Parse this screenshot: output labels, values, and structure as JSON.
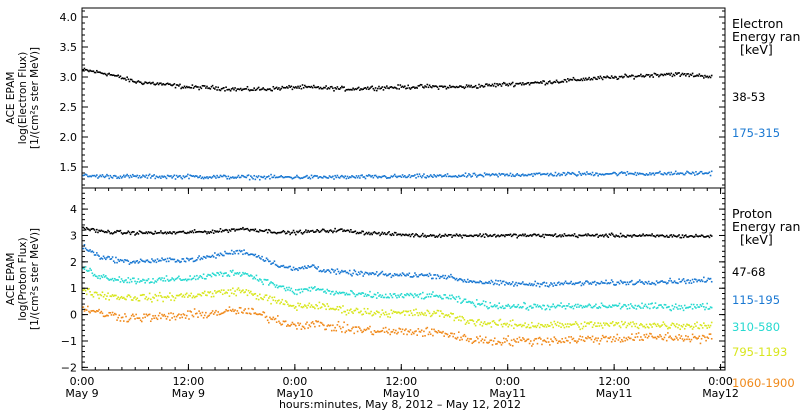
{
  "chart_data": [
    {
      "type": "scatter",
      "panel": "electron",
      "ylabel_lines": [
        "ACE EPAM",
        "log(Electron Flux)",
        "[1/(cm²s ster MeV)]"
      ],
      "ylim": [
        1.15,
        4.15
      ],
      "yticks": [
        1.5,
        2.0,
        2.5,
        3.0,
        3.5,
        4.0
      ],
      "ytick_labels": [
        "1.5",
        "2.0",
        "2.5",
        "3.0",
        "3.5",
        "4.0"
      ],
      "legend_title": [
        "Electron",
        "Energy ran",
        "[keV]"
      ],
      "series": [
        {
          "name": "38-53",
          "color": "#000000",
          "points": [
            [
              0,
              3.12
            ],
            [
              6,
              3.05
            ],
            [
              12,
              2.92
            ],
            [
              18,
              2.88
            ],
            [
              24,
              2.83
            ],
            [
              30,
              2.82
            ],
            [
              36,
              2.79
            ],
            [
              42,
              2.8
            ],
            [
              48,
              2.83
            ],
            [
              54,
              2.82
            ],
            [
              60,
              2.8
            ],
            [
              66,
              2.82
            ],
            [
              72,
              2.83
            ],
            [
              78,
              2.84
            ],
            [
              84,
              2.83
            ],
            [
              90,
              2.85
            ],
            [
              96,
              2.88
            ],
            [
              102,
              2.9
            ],
            [
              108,
              2.93
            ],
            [
              114,
              2.97
            ],
            [
              120,
              2.99
            ],
            [
              126,
              3.02
            ],
            [
              132,
              3.05
            ],
            [
              138,
              3.03
            ],
            [
              142,
              3.01
            ]
          ]
        },
        {
          "name": "175-315",
          "color": "#1a78d2",
          "points": [
            [
              0,
              1.35
            ],
            [
              12,
              1.34
            ],
            [
              24,
              1.34
            ],
            [
              36,
              1.33
            ],
            [
              48,
              1.33
            ],
            [
              60,
              1.33
            ],
            [
              72,
              1.34
            ],
            [
              84,
              1.35
            ],
            [
              96,
              1.37
            ],
            [
              108,
              1.38
            ],
            [
              120,
              1.39
            ],
            [
              132,
              1.39
            ],
            [
              142,
              1.4
            ]
          ]
        }
      ]
    },
    {
      "type": "scatter",
      "panel": "proton",
      "ylabel_lines": [
        "ACE EPAM",
        "log(Proton Flux)",
        "[1/(cm²s ster MeV)]"
      ],
      "ylim": [
        -2.1,
        4.8
      ],
      "yticks": [
        -2,
        -1,
        0,
        1,
        2,
        3,
        4
      ],
      "ytick_labels": [
        "−2",
        "−1",
        "0",
        "1",
        "2",
        "3",
        "4"
      ],
      "legend_title": [
        "Proton",
        "Energy ran",
        "[keV]"
      ],
      "series": [
        {
          "name": "47-68",
          "color": "#000000",
          "points": [
            [
              0,
              3.3
            ],
            [
              4,
              3.15
            ],
            [
              10,
              3.1
            ],
            [
              20,
              3.1
            ],
            [
              30,
              3.15
            ],
            [
              36,
              3.25
            ],
            [
              40,
              3.2
            ],
            [
              46,
              3.1
            ],
            [
              52,
              3.15
            ],
            [
              58,
              3.2
            ],
            [
              64,
              3.1
            ],
            [
              70,
              3.05
            ],
            [
              76,
              3.0
            ],
            [
              82,
              3.0
            ],
            [
              90,
              3.0
            ],
            [
              100,
              3.0
            ],
            [
              110,
              3.0
            ],
            [
              120,
              3.0
            ],
            [
              130,
              2.98
            ],
            [
              142,
              2.97
            ]
          ]
        },
        {
          "name": "115-195",
          "color": "#1a78d2",
          "points": [
            [
              0,
              2.6
            ],
            [
              4,
              2.2
            ],
            [
              10,
              2.0
            ],
            [
              18,
              2.05
            ],
            [
              26,
              2.1
            ],
            [
              32,
              2.3
            ],
            [
              36,
              2.4
            ],
            [
              40,
              2.2
            ],
            [
              44,
              1.9
            ],
            [
              48,
              1.7
            ],
            [
              52,
              1.85
            ],
            [
              54,
              1.7
            ],
            [
              58,
              1.6
            ],
            [
              64,
              1.55
            ],
            [
              70,
              1.5
            ],
            [
              76,
              1.5
            ],
            [
              82,
              1.45
            ],
            [
              86,
              1.3
            ],
            [
              92,
              1.2
            ],
            [
              100,
              1.15
            ],
            [
              110,
              1.18
            ],
            [
              120,
              1.2
            ],
            [
              130,
              1.25
            ],
            [
              142,
              1.3
            ]
          ]
        },
        {
          "name": "310-580",
          "color": "#27d9d0",
          "points": [
            [
              0,
              1.8
            ],
            [
              4,
              1.45
            ],
            [
              10,
              1.3
            ],
            [
              18,
              1.3
            ],
            [
              26,
              1.4
            ],
            [
              32,
              1.55
            ],
            [
              36,
              1.6
            ],
            [
              40,
              1.35
            ],
            [
              44,
              1.1
            ],
            [
              48,
              0.85
            ],
            [
              52,
              1.0
            ],
            [
              56,
              0.85
            ],
            [
              62,
              0.75
            ],
            [
              68,
              0.7
            ],
            [
              76,
              0.72
            ],
            [
              82,
              0.68
            ],
            [
              86,
              0.5
            ],
            [
              92,
              0.35
            ],
            [
              100,
              0.3
            ],
            [
              110,
              0.3
            ],
            [
              120,
              0.32
            ],
            [
              130,
              0.3
            ],
            [
              142,
              0.3
            ]
          ]
        },
        {
          "name": "795-1193",
          "color": "#d8e61e",
          "points": [
            [
              0,
              0.95
            ],
            [
              4,
              0.75
            ],
            [
              10,
              0.65
            ],
            [
              18,
              0.65
            ],
            [
              26,
              0.75
            ],
            [
              32,
              0.85
            ],
            [
              36,
              0.9
            ],
            [
              40,
              0.7
            ],
            [
              44,
              0.5
            ],
            [
              48,
              0.3
            ],
            [
              52,
              0.35
            ],
            [
              58,
              0.2
            ],
            [
              64,
              0.1
            ],
            [
              70,
              0.05
            ],
            [
              76,
              0.05
            ],
            [
              82,
              0.02
            ],
            [
              86,
              -0.2
            ],
            [
              92,
              -0.35
            ],
            [
              100,
              -0.4
            ],
            [
              110,
              -0.4
            ],
            [
              120,
              -0.38
            ],
            [
              130,
              -0.4
            ],
            [
              142,
              -0.42
            ]
          ]
        },
        {
          "name": "1060-1900",
          "color": "#f08a1c",
          "points": [
            [
              0,
              0.3
            ],
            [
              4,
              0.05
            ],
            [
              10,
              -0.1
            ],
            [
              18,
              -0.1
            ],
            [
              26,
              0.0
            ],
            [
              32,
              0.1
            ],
            [
              36,
              0.15
            ],
            [
              40,
              0.0
            ],
            [
              44,
              -0.2
            ],
            [
              48,
              -0.4
            ],
            [
              52,
              -0.35
            ],
            [
              58,
              -0.5
            ],
            [
              64,
              -0.6
            ],
            [
              70,
              -0.65
            ],
            [
              76,
              -0.65
            ],
            [
              82,
              -0.7
            ],
            [
              86,
              -0.9
            ],
            [
              92,
              -1.0
            ],
            [
              100,
              -1.0
            ],
            [
              110,
              -0.95
            ],
            [
              120,
              -0.9
            ],
            [
              130,
              -0.85
            ],
            [
              142,
              -0.9
            ]
          ]
        }
      ]
    }
  ],
  "x_axis": {
    "xlim_hours": [
      0,
      145
    ],
    "ticks": [
      {
        "hour": 0,
        "time": "0:00",
        "day": "May 9"
      },
      {
        "hour": 24,
        "time": "12:00",
        "day": "May 9"
      },
      {
        "hour": 48,
        "time": "0:00",
        "day": "May10"
      },
      {
        "hour": 72,
        "time": "12:00",
        "day": "May10"
      },
      {
        "hour": 96,
        "time": "0:00",
        "day": "May11"
      },
      {
        "hour": 120,
        "time": "12:00",
        "day": "May11"
      },
      {
        "hour": 144,
        "time": "0:00",
        "day": "May12"
      }
    ],
    "title": "hours:minutes, May  8, 2012 – May 12, 2012"
  }
}
